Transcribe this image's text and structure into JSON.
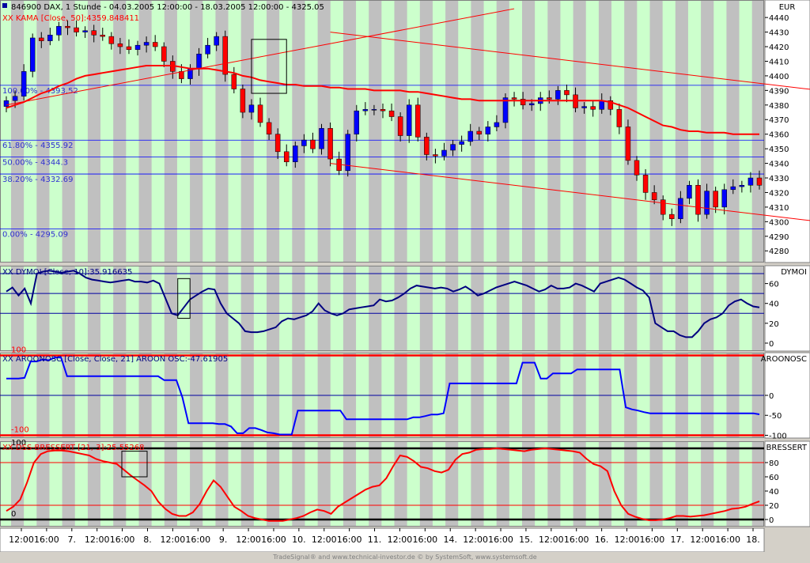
{
  "title_line": "846900  DAX, 1 Stunde - 04.03.2005 12:00:00 - 18.03.2005 12:00:00 - 4325.05",
  "footer": "TradeSignal® and www.technical-investor.de © by  SystemSoft, www.systemsoft.de",
  "colors": {
    "up": "#0000ff",
    "down": "#ff0000",
    "bg_light": "#ccffcc",
    "bg_dark": "#c0c0c0",
    "kama": "#ff0000",
    "fib": "#0000ff",
    "osc": "#0000a0"
  },
  "chart_data": [
    {
      "type": "candlestick",
      "axis_label": "EUR",
      "legend": "XX KAMA [Close, 50]:4359.848411",
      "ylim": [
        4272,
        4452
      ],
      "yticks": [
        4280,
        4290,
        4300,
        4310,
        4320,
        4330,
        4340,
        4350,
        4360,
        4370,
        4380,
        4390,
        4400,
        4410,
        4420,
        4430,
        4440
      ],
      "x_labels": [
        "12:00",
        "16:00",
        "7.",
        "12:00",
        "16:00",
        "8.",
        "12:00",
        "16:00",
        "9.",
        "12:00",
        "16:00",
        "10.",
        "12:00",
        "16:00",
        "11.",
        "12:00",
        "16:00",
        "14.",
        "12:00",
        "16:00",
        "15.",
        "12:00",
        "16:00",
        "16.",
        "12:00",
        "16:00",
        "17.",
        "12:00",
        "16:00",
        "18."
      ],
      "fib_levels": [
        {
          "label": "100.00% - 4393.52",
          "value": 4393.52
        },
        {
          "label": "61.80% - 4355.92",
          "value": 4355.92
        },
        {
          "label": "50.00% - 4344.3",
          "value": 4344.3
        },
        {
          "label": "38.20% - 4332.69",
          "value": 4332.69
        },
        {
          "label": "0.00% - 4295.09",
          "value": 4295.09
        }
      ],
      "close": [
        4383,
        4386,
        4403,
        4426,
        4424,
        4428,
        4434,
        4433,
        4430,
        4431,
        4428,
        4427,
        4422,
        4420,
        4418,
        4421,
        4423,
        4420,
        4410,
        4403,
        4398,
        4405,
        4415,
        4421,
        4427,
        4401,
        4391,
        4375,
        4380,
        4368,
        4360,
        4348,
        4341,
        4352,
        4356,
        4350,
        4364,
        4343,
        4335,
        4360,
        4376,
        4377,
        4377,
        4376,
        4372,
        4359,
        4380,
        4358,
        4346,
        4345,
        4349,
        4353,
        4355,
        4362,
        4360,
        4365,
        4368,
        4385,
        4384,
        4380,
        4381,
        4385,
        4384,
        4390,
        4387,
        4378,
        4379,
        4377,
        4383,
        4377,
        4365,
        4342,
        4332,
        4320,
        4315,
        4305,
        4302,
        4316,
        4325,
        4305,
        4321,
        4310,
        4322,
        4324,
        4325,
        4330,
        4325
      ],
      "kama": [
        4378,
        4380,
        4382,
        4385,
        4388,
        4390,
        4393,
        4395,
        4398,
        4400,
        4401,
        4402,
        4403,
        4404,
        4405,
        4406,
        4407,
        4407,
        4407,
        4407,
        4406,
        4405,
        4405,
        4405,
        4404,
        4403,
        4402,
        4400,
        4399,
        4397,
        4396,
        4395,
        4394,
        4394,
        4393,
        4393,
        4393,
        4392,
        4392,
        4391,
        4391,
        4391,
        4390,
        4390,
        4390,
        4390,
        4389,
        4389,
        4388,
        4387,
        4386,
        4385,
        4384,
        4384,
        4383,
        4383,
        4383,
        4383,
        4383,
        4383,
        4383,
        4383,
        4383,
        4383,
        4383,
        4383,
        4383,
        4383,
        4383,
        4382,
        4380,
        4378,
        4375,
        4372,
        4369,
        4366,
        4365,
        4363,
        4362,
        4362,
        4361,
        4361,
        4361,
        4360,
        4360,
        4360,
        4360
      ],
      "trendlines": [
        {
          "x0": 0,
          "y0": 4380,
          "x1": 58,
          "y1": 4446
        },
        {
          "x0": 37,
          "y0": 4430,
          "x1": 118,
          "y1": 4372
        },
        {
          "x0": 37,
          "y0": 4340,
          "x1": 118,
          "y1": 4282
        }
      ],
      "boxes": [
        {
          "x0": 28,
          "x1": 32,
          "y0": 4388,
          "y1": 4425
        }
      ]
    },
    {
      "type": "line",
      "axis_label": "DYMOI",
      "legend": "XX DYMOI [Close, 10]:35.916635",
      "ylim": [
        -8,
        78
      ],
      "yticks": [
        0,
        20,
        40,
        60
      ],
      "hlines": [
        70,
        50,
        30
      ],
      "values": [
        52,
        56,
        48,
        55,
        40,
        70,
        72,
        73,
        72,
        71,
        72,
        73,
        70,
        66,
        64,
        63,
        62,
        61,
        62,
        63,
        64,
        62,
        62,
        61,
        63,
        60,
        45,
        30,
        28,
        36,
        44,
        48,
        52,
        55,
        54,
        40,
        30,
        25,
        20,
        12,
        11,
        11,
        12,
        14,
        16,
        22,
        25,
        24,
        26,
        28,
        32,
        40,
        33,
        30,
        28,
        30,
        34,
        35,
        36,
        37,
        38,
        44,
        42,
        43,
        46,
        50,
        55,
        58,
        57,
        56,
        55,
        56,
        55,
        52,
        54,
        57,
        53,
        48,
        50,
        53,
        56,
        58,
        60,
        62,
        60,
        58,
        55,
        52,
        54,
        58,
        55,
        55,
        56,
        60,
        58,
        55,
        52,
        60,
        62,
        64,
        66,
        64,
        60,
        56,
        53,
        46,
        20,
        16,
        12,
        12,
        8,
        6,
        6,
        12,
        20,
        24,
        26,
        30,
        38,
        42,
        44,
        40,
        37,
        36
      ],
      "boxes": [
        {
          "x0": 28,
          "x1": 30,
          "y0": 25,
          "y1": 65
        }
      ]
    },
    {
      "type": "line",
      "axis_label": "AROONOSC",
      "legend": "XX AROONOSC [Close, Close, 21] AROON OSC:-47.61905",
      "ylim": [
        -107,
        107
      ],
      "yticks": [
        0,
        -50,
        -100
      ],
      "hlines": [
        100,
        -100
      ],
      "mid_hline": 0,
      "inline_labels": [
        {
          "text": "100",
          "value": 100
        },
        {
          "text": "-100",
          "value": -100
        }
      ],
      "values": [
        42,
        42,
        42,
        44,
        85,
        85,
        90,
        88,
        95,
        95,
        48,
        48,
        48,
        48,
        48,
        48,
        48,
        48,
        48,
        48,
        48,
        48,
        48,
        48,
        48,
        48,
        38,
        38,
        38,
        -5,
        -70,
        -70,
        -70,
        -70,
        -70,
        -72,
        -72,
        -78,
        -95,
        -95,
        -82,
        -82,
        -87,
        -93,
        -95,
        -98,
        -98,
        -98,
        -38,
        -38,
        -38,
        -38,
        -38,
        -38,
        -38,
        -38,
        -60,
        -60,
        -60,
        -60,
        -60,
        -60,
        -60,
        -60,
        -60,
        -60,
        -60,
        -55,
        -55,
        -52,
        -48,
        -48,
        -45,
        30,
        30,
        30,
        30,
        30,
        30,
        30,
        30,
        30,
        30,
        30,
        30,
        82,
        82,
        82,
        42,
        42,
        55,
        55,
        55,
        55,
        65,
        65,
        65,
        65,
        65,
        65,
        65,
        65,
        -30,
        -35,
        -38,
        -42,
        -45,
        -45,
        -45,
        -45,
        -45,
        -45,
        -45,
        -45,
        -45,
        -45,
        -45,
        -45,
        -45,
        -45,
        -45,
        -45,
        -45,
        -45,
        -47.6
      ]
    },
    {
      "type": "line",
      "axis_label": "BRESSERT",
      "legend": "XX DSS-BRESSERT [21, 3]:25.55268",
      "ylim": [
        -10,
        110
      ],
      "yticks": [
        0,
        20,
        40,
        60,
        80
      ],
      "hlines": [
        100,
        80,
        20,
        0
      ],
      "inline_labels": [
        {
          "text": "100",
          "value": 100
        },
        {
          "text": "0",
          "value": 0
        }
      ],
      "values": [
        12,
        18,
        28,
        52,
        80,
        92,
        96,
        97,
        97,
        96,
        94,
        92,
        90,
        85,
        82,
        80,
        78,
        70,
        62,
        55,
        48,
        40,
        25,
        15,
        8,
        5,
        5,
        10,
        22,
        40,
        55,
        46,
        32,
        18,
        12,
        5,
        2,
        0,
        -2,
        -2,
        -2,
        0,
        2,
        5,
        10,
        14,
        12,
        8,
        18,
        24,
        30,
        36,
        42,
        46,
        48,
        58,
        75,
        90,
        88,
        82,
        74,
        72,
        68,
        66,
        70,
        84,
        92,
        94,
        98,
        99,
        99,
        100,
        99,
        98,
        97,
        96,
        98,
        99,
        100,
        99,
        98,
        97,
        96,
        94,
        85,
        78,
        75,
        68,
        40,
        20,
        8,
        4,
        1,
        -1,
        -1,
        0,
        2,
        5,
        5,
        4,
        5,
        6,
        8,
        10,
        12,
        15,
        16,
        18,
        22,
        25.5
      ]
    }
  ]
}
